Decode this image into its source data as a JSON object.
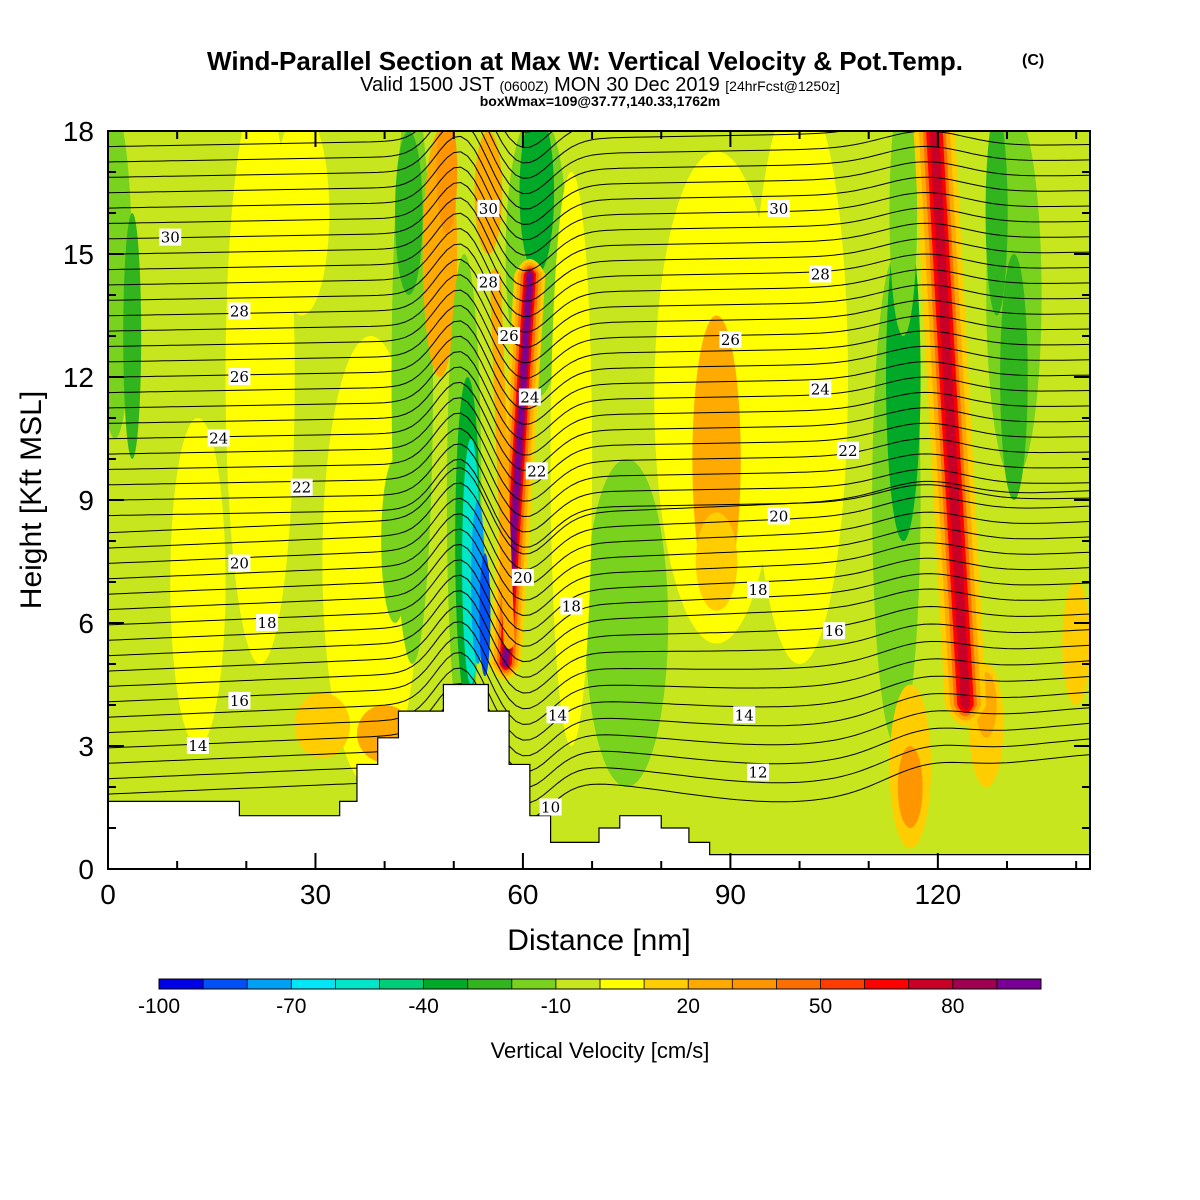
{
  "header": {
    "title": "Wind-Parallel Section at Max W: Vertical Velocity & Pot.Temp.",
    "copyright": "(C)",
    "valid_prefix": "Valid 1500 JST",
    "valid_utc": "(0600Z)",
    "valid_date": "MON 30 Dec 2019",
    "forecast": "[24hrFcst@1250z]",
    "box_wmax": "boxWmax=109@37.77,140.33,1762m"
  },
  "chart_data": {
    "type": "heatmap",
    "xlabel": "Distance [nm]",
    "ylabel": "Height [Kft MSL]",
    "xlim": [
      0,
      142
    ],
    "ylim": [
      0,
      18
    ],
    "xticks": [
      {
        "value": 0,
        "label": "0"
      },
      {
        "value": 30,
        "label": "30"
      },
      {
        "value": 60,
        "label": "60"
      },
      {
        "value": 90,
        "label": "90"
      },
      {
        "value": 120,
        "label": "120"
      }
    ],
    "yticks": [
      {
        "value": 0,
        "label": "0"
      },
      {
        "value": 3,
        "label": "3"
      },
      {
        "value": 6,
        "label": "6"
      },
      {
        "value": 9,
        "label": "9"
      },
      {
        "value": 12,
        "label": "12"
      },
      {
        "value": 15,
        "label": "15"
      },
      {
        "value": 18,
        "label": "18"
      }
    ],
    "colorbar": {
      "title": "Vertical Velocity [cm/s]",
      "levels": [
        -100,
        -90,
        -80,
        -70,
        -60,
        -50,
        -40,
        -30,
        -20,
        -10,
        0,
        10,
        20,
        30,
        40,
        50,
        60,
        70,
        80,
        90,
        100
      ],
      "colors": [
        "#0000e6",
        "#0050f5",
        "#00a0f5",
        "#00e6f5",
        "#00e6c8",
        "#00cd78",
        "#00aa28",
        "#32b41e",
        "#78d21e",
        "#c8e61e",
        "#ffff00",
        "#ffcd00",
        "#ffaa00",
        "#ff9600",
        "#ff6e00",
        "#ff3c00",
        "#ff0000",
        "#c80028",
        "#a00050",
        "#780096"
      ],
      "tick_labels": [
        {
          "value": -100,
          "label": "-100"
        },
        {
          "value": -70,
          "label": "-70"
        },
        {
          "value": -40,
          "label": "-40"
        },
        {
          "value": -10,
          "label": "-10"
        },
        {
          "value": 20,
          "label": "20"
        },
        {
          "value": 50,
          "label": "50"
        },
        {
          "value": 80,
          "label": "80"
        }
      ]
    },
    "terrain_kft": [
      [
        0,
        1.65
      ],
      [
        19,
        1.65
      ],
      [
        19,
        1.3
      ],
      [
        33.5,
        1.3
      ],
      [
        33.5,
        1.65
      ],
      [
        36,
        1.65
      ],
      [
        36,
        2.55
      ],
      [
        39,
        2.55
      ],
      [
        39,
        3.2
      ],
      [
        42,
        3.2
      ],
      [
        42,
        3.85
      ],
      [
        48.5,
        3.85
      ],
      [
        48.5,
        4.5
      ],
      [
        55,
        4.5
      ],
      [
        55,
        3.85
      ],
      [
        58,
        3.85
      ],
      [
        58,
        2.55
      ],
      [
        61,
        2.55
      ],
      [
        61,
        1.3
      ],
      [
        64,
        1.3
      ],
      [
        64,
        0.65
      ],
      [
        71,
        0.65
      ],
      [
        71,
        1
      ],
      [
        74,
        1
      ],
      [
        74,
        1.3
      ],
      [
        80,
        1.3
      ],
      [
        80,
        1
      ],
      [
        84,
        1
      ],
      [
        84,
        0.65
      ],
      [
        87,
        0.65
      ],
      [
        87,
        0.35
      ],
      [
        142,
        0.35
      ]
    ],
    "theta_contours": [
      {
        "label": "10",
        "at": [
          64,
          1.5
        ]
      },
      {
        "label": "12",
        "at": [
          94,
          2.35
        ]
      },
      {
        "label": "14",
        "at": [
          13,
          3.0
        ]
      },
      {
        "label": "14",
        "at": [
          65,
          3.75
        ]
      },
      {
        "label": "14",
        "at": [
          92,
          3.75
        ]
      },
      {
        "label": "16",
        "at": [
          19,
          4.1
        ]
      },
      {
        "label": "16",
        "at": [
          105,
          5.8
        ]
      },
      {
        "label": "18",
        "at": [
          23,
          6.0
        ]
      },
      {
        "label": "18",
        "at": [
          67,
          6.4
        ]
      },
      {
        "label": "18",
        "at": [
          94,
          6.8
        ]
      },
      {
        "label": "20",
        "at": [
          19,
          7.45
        ]
      },
      {
        "label": "20",
        "at": [
          60,
          7.1
        ]
      },
      {
        "label": "20",
        "at": [
          97,
          8.6
        ]
      },
      {
        "label": "22",
        "at": [
          28,
          9.3
        ]
      },
      {
        "label": "22",
        "at": [
          62,
          9.7
        ]
      },
      {
        "label": "22",
        "at": [
          107,
          10.2
        ]
      },
      {
        "label": "24",
        "at": [
          16,
          10.5
        ]
      },
      {
        "label": "24",
        "at": [
          61,
          11.5
        ]
      },
      {
        "label": "24",
        "at": [
          103,
          11.7
        ]
      },
      {
        "label": "26",
        "at": [
          19,
          12.0
        ]
      },
      {
        "label": "26",
        "at": [
          58,
          13.0
        ]
      },
      {
        "label": "26",
        "at": [
          90,
          12.9
        ]
      },
      {
        "label": "28",
        "at": [
          19,
          13.6
        ]
      },
      {
        "label": "28",
        "at": [
          55,
          14.3
        ]
      },
      {
        "label": "28",
        "at": [
          103,
          14.5
        ]
      },
      {
        "label": "30",
        "at": [
          9,
          15.4
        ]
      },
      {
        "label": "30",
        "at": [
          55,
          16.1
        ]
      },
      {
        "label": "30",
        "at": [
          97,
          16.1
        ]
      }
    ]
  }
}
